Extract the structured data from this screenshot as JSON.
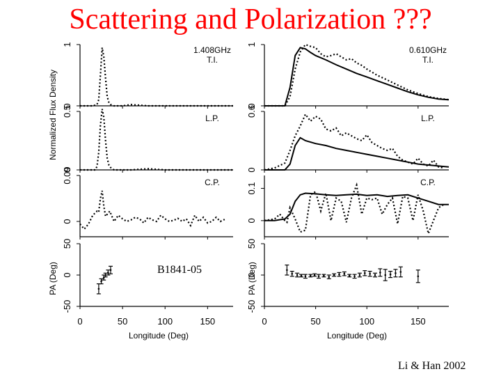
{
  "slide": {
    "title": "Scattering and Polarization ???",
    "pulsar": "B1841-05",
    "citation": "Li & Han 2002"
  },
  "chart_data": {
    "type": "line",
    "shared_ylabel": "Normalized Flux Density",
    "pa_ylabel": "PA (Deg)",
    "xlabel": "Longitude (Deg)",
    "xlim": [
      0,
      180
    ],
    "xticks": [
      0,
      50,
      100,
      150
    ],
    "columns": [
      {
        "frequency": "1.408GHz",
        "panels": [
          {
            "label": "T.I.",
            "ylim": [
              0,
              1
            ],
            "yticks": [
              "0",
              "1"
            ],
            "series": [
              {
                "style": "dotted",
                "x": [
                  0,
                  15,
                  20,
                  22,
                  24,
                  26,
                  28,
                  30,
                  32,
                  34,
                  36,
                  40,
                  50,
                  60,
                  80,
                  100,
                  120,
                  140,
                  160,
                  180
                ],
                "y": [
                  0.0,
                  0.0,
                  0.02,
                  0.1,
                  0.5,
                  0.95,
                  0.8,
                  0.45,
                  0.15,
                  0.05,
                  0.02,
                  0.0,
                  0.0,
                  0.02,
                  0.0,
                  0.0,
                  0.0,
                  0.0,
                  0.0,
                  0.0
                ]
              }
            ]
          },
          {
            "label": "L.P.",
            "ylim": [
              0,
              0.5
            ],
            "yticks": [
              "0",
              "0.5"
            ],
            "series": [
              {
                "style": "dotted",
                "x": [
                  0,
                  18,
                  20,
                  22,
                  24,
                  26,
                  28,
                  30,
                  32,
                  34,
                  36,
                  40,
                  50,
                  60,
                  80,
                  100,
                  120,
                  140,
                  160,
                  180
                ],
                "y": [
                  0.0,
                  0.0,
                  0.03,
                  0.15,
                  0.38,
                  0.52,
                  0.45,
                  0.25,
                  0.1,
                  0.04,
                  0.02,
                  0.0,
                  0.0,
                  0.0,
                  0.01,
                  0.0,
                  0.0,
                  0.0,
                  0.0,
                  0.0
                ]
              }
            ]
          },
          {
            "label": "C.P.",
            "ylim": [
              -0.03,
              0.09
            ],
            "yticks": [
              "0",
              "0.09"
            ],
            "series": [
              {
                "style": "dotted",
                "x": [
                  0,
                  5,
                  10,
                  15,
                  20,
                  22,
                  24,
                  26,
                  28,
                  30,
                  35,
                  40,
                  45,
                  50,
                  55,
                  60,
                  65,
                  70,
                  75,
                  80,
                  85,
                  90,
                  95,
                  100,
                  105,
                  110,
                  115,
                  120,
                  125,
                  130,
                  135,
                  140,
                  145,
                  150,
                  155,
                  160,
                  165,
                  170
                ],
                "y": [
                  -0.005,
                  -0.015,
                  -0.005,
                  0.012,
                  0.02,
                  0.018,
                  0.045,
                  0.06,
                  0.03,
                  0.01,
                  0.02,
                  0.0,
                  0.012,
                  0.005,
                  0.0,
                  0.003,
                  0.008,
                  0.005,
                  -0.003,
                  0.008,
                  0.003,
                  0.0,
                  0.012,
                  0.005,
                  0.0,
                  0.002,
                  0.006,
                  0.0,
                  0.005,
                  -0.008,
                  0.012,
                  0.0,
                  0.008,
                  -0.003,
                  0.0,
                  0.008,
                  0.0,
                  0.004
                ]
              }
            ]
          },
          {
            "label": "",
            "ylim": [
              -50,
              50
            ],
            "yticks": [
              "-50",
              "0",
              "50"
            ],
            "series": [
              {
                "style": "errorbar",
                "x": [
                  22,
                  25,
                  28,
                  30,
                  33,
                  36
                ],
                "y": [
                  -22,
                  -10,
                  -4,
                  0,
                  4,
                  8
                ],
                "err": [
                  8,
                  4,
                  4,
                  3,
                  4,
                  6
                ]
              }
            ]
          }
        ]
      },
      {
        "frequency": "0.610GHz",
        "panels": [
          {
            "label": "T.I.",
            "ylim": [
              0,
              1
            ],
            "yticks": [
              "0",
              "1"
            ],
            "series": [
              {
                "style": "solid",
                "x": [
                  0,
                  20,
                  25,
                  30,
                  35,
                  40,
                  45,
                  50,
                  60,
                  70,
                  80,
                  90,
                  100,
                  110,
                  120,
                  130,
                  140,
                  150,
                  160,
                  170,
                  180
                ],
                "y": [
                  0.0,
                  0.0,
                  0.3,
                  0.82,
                  0.95,
                  0.93,
                  0.87,
                  0.82,
                  0.75,
                  0.67,
                  0.6,
                  0.53,
                  0.47,
                  0.41,
                  0.35,
                  0.29,
                  0.23,
                  0.18,
                  0.14,
                  0.11,
                  0.1
                ]
              },
              {
                "style": "dotted",
                "x": [
                  0,
                  20,
                  25,
                  30,
                  35,
                  40,
                  45,
                  50,
                  55,
                  60,
                  65,
                  70,
                  75,
                  80,
                  85,
                  90,
                  95,
                  100,
                  110,
                  120,
                  130,
                  140,
                  150,
                  160,
                  170,
                  180
                ],
                "y": [
                  0.0,
                  0.0,
                  0.15,
                  0.6,
                  0.88,
                  1.0,
                  0.97,
                  0.95,
                  0.85,
                  0.8,
                  0.82,
                  0.85,
                  0.8,
                  0.75,
                  0.77,
                  0.7,
                  0.66,
                  0.6,
                  0.5,
                  0.42,
                  0.34,
                  0.26,
                  0.2,
                  0.15,
                  0.12,
                  0.1
                ]
              }
            ]
          },
          {
            "label": "L.P.",
            "ylim": [
              0,
              0.6
            ],
            "yticks": [
              "0",
              "0.6"
            ],
            "series": [
              {
                "style": "solid",
                "x": [
                  0,
                  20,
                  25,
                  30,
                  35,
                  40,
                  50,
                  60,
                  70,
                  80,
                  90,
                  100,
                  110,
                  120,
                  130,
                  140,
                  150,
                  160,
                  170,
                  180
                ],
                "y": [
                  0.0,
                  0.0,
                  0.06,
                  0.25,
                  0.33,
                  0.3,
                  0.27,
                  0.25,
                  0.22,
                  0.2,
                  0.18,
                  0.16,
                  0.14,
                  0.12,
                  0.1,
                  0.08,
                  0.06,
                  0.05,
                  0.04,
                  0.03
                ]
              },
              {
                "style": "dotted",
                "x": [
                  0,
                  10,
                  20,
                  25,
                  30,
                  35,
                  40,
                  45,
                  50,
                  55,
                  60,
                  65,
                  70,
                  75,
                  80,
                  85,
                  90,
                  95,
                  100,
                  105,
                  110,
                  115,
                  120,
                  125,
                  130,
                  135,
                  140,
                  145,
                  150,
                  155,
                  160,
                  165,
                  170,
                  175
                ],
                "y": [
                  0.0,
                  0.02,
                  0.07,
                  0.2,
                  0.35,
                  0.45,
                  0.57,
                  0.5,
                  0.55,
                  0.52,
                  0.42,
                  0.4,
                  0.43,
                  0.35,
                  0.38,
                  0.35,
                  0.32,
                  0.3,
                  0.36,
                  0.28,
                  0.25,
                  0.22,
                  0.2,
                  0.22,
                  0.14,
                  0.1,
                  0.08,
                  0.06,
                  0.12,
                  0.06,
                  0.04,
                  0.1,
                  0.03,
                  0.02
                ]
              }
            ]
          },
          {
            "label": "C.P.",
            "ylim": [
              -0.05,
              0.14
            ],
            "yticks": [
              "0",
              "0.1"
            ],
            "series": [
              {
                "style": "solid",
                "x": [
                  0,
                  10,
                  15,
                  20,
                  25,
                  30,
                  35,
                  40,
                  50,
                  60,
                  70,
                  80,
                  90,
                  100,
                  110,
                  120,
                  130,
                  140,
                  150,
                  160,
                  170,
                  180
                ],
                "y": [
                  0.0,
                  0.0,
                  0.003,
                  0.005,
                  0.02,
                  0.06,
                  0.08,
                  0.085,
                  0.083,
                  0.08,
                  0.078,
                  0.08,
                  0.082,
                  0.078,
                  0.08,
                  0.075,
                  0.078,
                  0.08,
                  0.07,
                  0.06,
                  0.05,
                  0.05
                ]
              },
              {
                "style": "dotted",
                "x": [
                  0,
                  10,
                  15,
                  20,
                  22,
                  25,
                  30,
                  35,
                  40,
                  45,
                  50,
                  55,
                  60,
                  65,
                  70,
                  75,
                  80,
                  85,
                  90,
                  95,
                  100,
                  105,
                  110,
                  115,
                  120,
                  125,
                  130,
                  135,
                  140,
                  145,
                  150,
                  155,
                  160,
                  165,
                  170,
                  175
                ],
                "y": [
                  0.0,
                  0.005,
                  0.02,
                  0.0,
                  -0.005,
                  0.04,
                  0.005,
                  -0.035,
                  -0.03,
                  0.08,
                  0.09,
                  0.03,
                  0.085,
                  0.0,
                  0.07,
                  0.06,
                  -0.005,
                  0.07,
                  0.11,
                  0.02,
                  0.07,
                  0.065,
                  0.07,
                  0.02,
                  0.05,
                  0.07,
                  -0.01,
                  0.075,
                  0.07,
                  0.0,
                  0.08,
                  0.03,
                  -0.04,
                  0.0,
                  0.04,
                  0.05
                ]
              }
            ]
          },
          {
            "label": "",
            "ylim": [
              -50,
              50
            ],
            "yticks": [
              "-50",
              "0",
              "50"
            ],
            "series": [
              {
                "style": "errorbar",
                "x": [
                  22,
                  27,
                  32,
                  36,
                  40,
                  45,
                  49,
                  53,
                  58,
                  63,
                  68,
                  73,
                  78,
                  83,
                  88,
                  93,
                  98,
                  103,
                  108,
                  113,
                  118,
                  123,
                  128,
                  133,
                  150
                ],
                "y": [
                  8,
                  2,
                  0,
                  -1,
                  -2,
                  -1,
                  0,
                  -2,
                  -1,
                  -3,
                  0,
                  1,
                  2,
                  -1,
                  -2,
                  0,
                  3,
                  2,
                  0,
                  4,
                  0,
                  1,
                  3,
                  5,
                  -2
                ],
                "err": [
                  8,
                  4,
                  3,
                  2,
                  3,
                  2,
                  2,
                  3,
                  2,
                  3,
                  2,
                  3,
                  3,
                  2,
                  3,
                  3,
                  4,
                  4,
                  3,
                  6,
                  9,
                  5,
                  6,
                  8,
                  10
                ]
              }
            ]
          }
        ]
      }
    ]
  }
}
